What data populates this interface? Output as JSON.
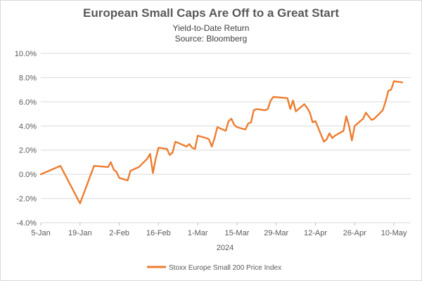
{
  "chart_data": {
    "type": "line",
    "title": "European Small Caps Are Off to a Great Start",
    "subtitle": "Yield-to-Date Return",
    "source": "Source: Bloomberg",
    "xlabel": "2024",
    "ylabel": "",
    "ylim": [
      -4.0,
      10.0
    ],
    "y_ticks": [
      "10.0%",
      "8.0%",
      "6.0%",
      "4.0%",
      "2.0%",
      "0.0%",
      "-2.0%",
      "-4.0%"
    ],
    "y_tick_values": [
      10,
      8,
      6,
      4,
      2,
      0,
      -2,
      -4
    ],
    "x_ticks": [
      "5-Jan",
      "19-Jan",
      "2-Feb",
      "16-Feb",
      "1-Mar",
      "15-Mar",
      "29-Mar",
      "12-Apr",
      "26-Apr",
      "10-May"
    ],
    "grid": "horizontal",
    "legend_position": "bottom",
    "color": "#ED7D31",
    "series": [
      {
        "name": "Stoxx Europe Small 200 Price Index",
        "x": [
          "2024-01-05",
          "2024-01-12",
          "2024-01-19",
          "2024-01-24",
          "2024-01-29",
          "2024-01-30",
          "2024-01-31",
          "2024-02-01",
          "2024-02-02",
          "2024-02-05",
          "2024-02-06",
          "2024-02-07",
          "2024-02-08",
          "2024-02-09",
          "2024-02-12",
          "2024-02-13",
          "2024-02-14",
          "2024-02-15",
          "2024-02-16",
          "2024-02-19",
          "2024-02-20",
          "2024-02-21",
          "2024-02-22",
          "2024-02-23",
          "2024-02-26",
          "2024-02-27",
          "2024-02-28",
          "2024-02-29",
          "2024-03-01",
          "2024-03-04",
          "2024-03-05",
          "2024-03-06",
          "2024-03-07",
          "2024-03-08",
          "2024-03-11",
          "2024-03-12",
          "2024-03-13",
          "2024-03-14",
          "2024-03-15",
          "2024-03-18",
          "2024-03-19",
          "2024-03-20",
          "2024-03-21",
          "2024-03-22",
          "2024-03-25",
          "2024-03-26",
          "2024-03-27",
          "2024-03-28",
          "2024-04-02",
          "2024-04-03",
          "2024-04-04",
          "2024-04-05",
          "2024-04-08",
          "2024-04-09",
          "2024-04-10",
          "2024-04-11",
          "2024-04-12",
          "2024-04-15",
          "2024-04-16",
          "2024-04-17",
          "2024-04-18",
          "2024-04-19",
          "2024-04-22",
          "2024-04-23",
          "2024-04-24",
          "2024-04-25",
          "2024-04-26",
          "2024-04-29",
          "2024-04-30",
          "2024-05-02",
          "2024-05-03",
          "2024-05-06",
          "2024-05-07",
          "2024-05-08",
          "2024-05-09",
          "2024-05-10",
          "2024-05-13"
        ],
        "values": [
          0.0,
          0.7,
          -2.4,
          0.7,
          0.6,
          1.0,
          0.4,
          0.2,
          -0.3,
          -0.5,
          0.3,
          0.4,
          0.5,
          0.6,
          1.3,
          1.7,
          0.1,
          1.3,
          2.2,
          2.1,
          1.6,
          1.8,
          2.7,
          2.6,
          2.3,
          2.5,
          2.2,
          2.1,
          3.2,
          3.0,
          2.9,
          2.3,
          3.0,
          3.9,
          3.6,
          4.4,
          4.6,
          4.1,
          3.9,
          3.7,
          4.2,
          4.3,
          5.3,
          5.4,
          5.3,
          5.4,
          6.1,
          6.4,
          6.3,
          5.4,
          6.1,
          5.2,
          5.8,
          5.5,
          5.1,
          4.3,
          4.4,
          2.7,
          2.9,
          3.4,
          3.0,
          3.2,
          3.6,
          4.8,
          4.0,
          2.8,
          4.0,
          4.6,
          5.1,
          4.5,
          4.6,
          5.3,
          6.0,
          6.9,
          7.0,
          7.7,
          7.6
        ]
      }
    ]
  }
}
